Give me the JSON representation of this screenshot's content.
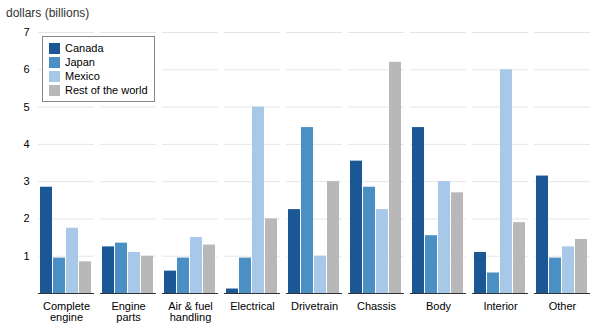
{
  "chart_data": {
    "type": "bar",
    "y_label": "dollars (billions)",
    "categories": [
      "Complete\nengine",
      "Engine\nparts",
      "Air & fuel\nhandling",
      "Electrical",
      "Drivetrain",
      "Chassis",
      "Body",
      "Interior",
      "Other"
    ],
    "series": [
      {
        "name": "Canada",
        "color": "#1a5794",
        "values": [
          2.85,
          1.25,
          0.6,
          0.12,
          2.25,
          3.55,
          4.45,
          1.1,
          3.15
        ]
      },
      {
        "name": "Japan",
        "color": "#4a90c4",
        "values": [
          0.95,
          1.35,
          0.95,
          0.95,
          4.45,
          2.85,
          1.55,
          0.55,
          0.95
        ]
      },
      {
        "name": "Mexico",
        "color": "#a8c8e8",
        "values": [
          1.75,
          1.1,
          1.5,
          5.0,
          1.0,
          2.25,
          3.0,
          6.0,
          1.25
        ]
      },
      {
        "name": "Rest of the world",
        "color": "#b8b8b8",
        "values": [
          0.85,
          1.0,
          1.3,
          2.0,
          3.0,
          6.2,
          2.7,
          1.9,
          1.45
        ]
      }
    ],
    "ylim": [
      0,
      7
    ],
    "yticks": [
      1,
      2,
      3,
      4,
      5,
      6,
      7
    ],
    "grid": true,
    "legend": "upper left"
  }
}
